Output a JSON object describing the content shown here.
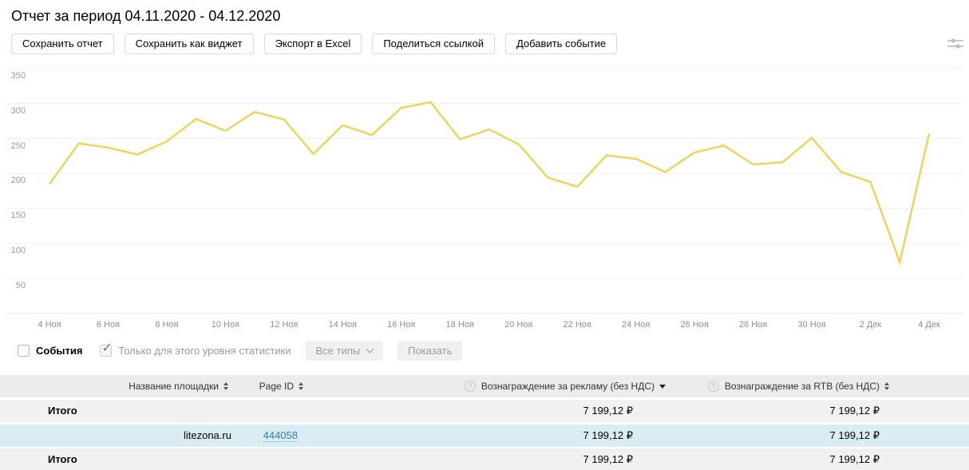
{
  "page": {
    "title": "Отчет за период 04.11.2020 - 04.12.2020"
  },
  "toolbar": {
    "buttons": [
      "Сохранить отчет",
      "Сохранить как виджет",
      "Экспорт в Excel",
      "Поделиться ссылкой",
      "Добавить событие"
    ]
  },
  "icons": {
    "help": "?",
    "check": "✓"
  },
  "filters": {
    "events_label": "События",
    "events_checked": false,
    "level_label": "Только для этого уровня статистики",
    "level_checked": true,
    "types_button": "Все типы",
    "show_button": "Показать"
  },
  "chart_data": {
    "type": "line",
    "title": "",
    "legend": "none",
    "grid": "horizontal",
    "x_range": {
      "from": "04.11.2020",
      "to": "04.12.2020",
      "step": "1 day"
    },
    "x_tick_labels": [
      "4 Ноя",
      "6 Ноя",
      "8 Ноя",
      "10 Ноя",
      "12 Ноя",
      "14 Ноя",
      "16 Ноя",
      "18 Ноя",
      "20 Ноя",
      "22 Ноя",
      "24 Ноя",
      "26 Ноя",
      "28 Ноя",
      "30 Ноя",
      "2 Дек",
      "4 Дек"
    ],
    "y_ticks": [
      50,
      100,
      150,
      200,
      250,
      300,
      350
    ],
    "ylim": [
      0,
      370
    ],
    "values": [
      185,
      243,
      237,
      227,
      246,
      278,
      261,
      288,
      277,
      228,
      269,
      255,
      294,
      302,
      249,
      263,
      242,
      194,
      181,
      226,
      221,
      202,
      230,
      240,
      213,
      216,
      251,
      202,
      188,
      73,
      257
    ],
    "line_color": "#ecd45e",
    "grid_color": "#f0f0f0",
    "axis_color": "#e6e6e6",
    "label_color": "#999999"
  },
  "table": {
    "headers": [
      {
        "label": "Название площадки",
        "sort": "both",
        "help": false
      },
      {
        "label": "Page ID",
        "sort": "both",
        "help": false
      },
      {
        "label": "Вознаграждение за рекламу (без НДС)",
        "sort": "desc",
        "help": true
      },
      {
        "label": "Вознаграждение за RTB (без НДС)",
        "sort": "both",
        "help": true
      }
    ],
    "rows": [
      {
        "name": "Итого",
        "page_id": "",
        "ads": "7 199,12 ₽",
        "rtb": "7 199,12 ₽",
        "kind": "total"
      },
      {
        "name": "litezona.ru",
        "page_id": "444058",
        "ads": "7 199,12 ₽",
        "rtb": "7 199,12 ₽",
        "kind": "site",
        "highlighted": true
      },
      {
        "name": "Итого",
        "page_id": "",
        "ads": "7 199,12 ₽",
        "rtb": "7 199,12 ₽",
        "kind": "total"
      }
    ]
  }
}
